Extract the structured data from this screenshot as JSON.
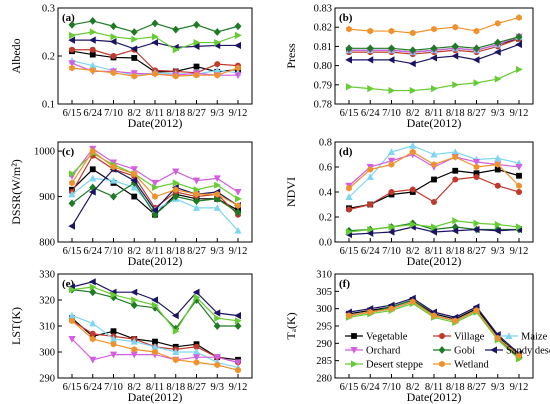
{
  "x_categories": [
    "6/15",
    "6/24",
    "7/10",
    "8/2",
    "8/11",
    "8/18",
    "8/27",
    "9/3",
    "9/12"
  ],
  "x_label": "Date(2012)",
  "colors": {
    "Vegetable": "#000000",
    "Village": "#c0392b",
    "Maize": "#7fd6f0",
    "Orchard": "#d35fe0",
    "Gobi": "#1f7a24",
    "Sandy desert": "#1b1464",
    "Desert steppe": "#66cc33",
    "Wetland": "#f0922c"
  },
  "legend": {
    "entries": [
      {
        "name": "Vegetable",
        "marker": "square"
      },
      {
        "name": "Village",
        "marker": "circle"
      },
      {
        "name": "Maize",
        "marker": "triangle"
      },
      {
        "name": "Orchard",
        "marker": "tri-down"
      },
      {
        "name": "Gobi",
        "marker": "diamond"
      },
      {
        "name": "Sandy desert",
        "marker": "tri-left"
      },
      {
        "name": "Desert steppe",
        "marker": "tri-right"
      },
      {
        "name": "Wetland",
        "marker": "hexagon"
      }
    ]
  },
  "chart_data": [
    {
      "panel": "(a)",
      "type": "line",
      "ylabel": "Albedo",
      "ylim": [
        0.1,
        0.3
      ],
      "yticks": [
        0.1,
        0.2,
        0.3
      ],
      "ytick_labels": [
        "0.1",
        "0.2",
        "0.3"
      ],
      "categories": [
        "6/15",
        "6/24",
        "7/10",
        "8/2",
        "8/11",
        "8/18",
        "8/27",
        "9/3",
        "9/12"
      ],
      "series": [
        {
          "name": "Vegetable",
          "values": [
            0.21,
            0.203,
            0.197,
            0.196,
            0.167,
            0.168,
            0.178,
            0.167,
            0.172
          ]
        },
        {
          "name": "Village",
          "values": [
            0.213,
            0.213,
            0.2,
            0.213,
            0.17,
            0.168,
            0.165,
            0.183,
            0.18
          ]
        },
        {
          "name": "Maize",
          "values": [
            0.19,
            0.18,
            0.17,
            0.16,
            0.165,
            0.163,
            0.162,
            0.17,
            0.165
          ]
        },
        {
          "name": "Orchard",
          "values": [
            0.185,
            0.168,
            0.168,
            0.164,
            0.162,
            0.16,
            0.164,
            0.16,
            0.16
          ]
        },
        {
          "name": "Gobi",
          "values": [
            0.265,
            0.273,
            0.262,
            0.25,
            0.268,
            0.255,
            0.265,
            0.25,
            0.262
          ]
        },
        {
          "name": "Sandy desert",
          "values": [
            0.233,
            0.233,
            0.23,
            0.215,
            0.228,
            0.218,
            0.22,
            0.222,
            0.222
          ]
        },
        {
          "name": "Desert steppe",
          "values": [
            0.243,
            0.25,
            0.24,
            0.235,
            0.24,
            0.213,
            0.228,
            0.228,
            0.243
          ]
        },
        {
          "name": "Wetland",
          "values": [
            0.175,
            0.17,
            0.165,
            0.158,
            0.163,
            0.158,
            0.16,
            0.16,
            0.175
          ]
        }
      ]
    },
    {
      "panel": "(b)",
      "type": "line",
      "ylabel": "Press",
      "ylim": [
        0.78,
        0.83
      ],
      "yticks": [
        0.78,
        0.79,
        0.8,
        0.81,
        0.82,
        0.83
      ],
      "ytick_labels": [
        "0.78",
        "0.79",
        "0.80",
        "0.81",
        "0.82",
        "0.83"
      ],
      "categories": [
        "6/15",
        "6/24",
        "7/10",
        "8/2",
        "8/11",
        "8/18",
        "8/27",
        "9/3",
        "9/12"
      ],
      "series": [
        {
          "name": "Vegetable",
          "values": [
            0.808,
            0.808,
            0.808,
            0.807,
            0.808,
            0.809,
            0.808,
            0.811,
            0.814
          ]
        },
        {
          "name": "Village",
          "values": [
            0.807,
            0.807,
            0.807,
            0.806,
            0.807,
            0.808,
            0.807,
            0.81,
            0.814
          ]
        },
        {
          "name": "Maize",
          "values": [
            0.808,
            0.808,
            0.808,
            0.807,
            0.808,
            0.809,
            0.808,
            0.811,
            0.815
          ]
        },
        {
          "name": "Orchard",
          "values": [
            0.808,
            0.808,
            0.808,
            0.807,
            0.808,
            0.809,
            0.808,
            0.811,
            0.815
          ]
        },
        {
          "name": "Gobi",
          "values": [
            0.809,
            0.809,
            0.809,
            0.808,
            0.809,
            0.81,
            0.809,
            0.812,
            0.815
          ]
        },
        {
          "name": "Sandy desert",
          "values": [
            0.803,
            0.803,
            0.803,
            0.801,
            0.804,
            0.805,
            0.803,
            0.807,
            0.811
          ]
        },
        {
          "name": "Desert steppe",
          "values": [
            0.789,
            0.788,
            0.787,
            0.787,
            0.788,
            0.79,
            0.791,
            0.793,
            0.798
          ]
        },
        {
          "name": "Wetland",
          "values": [
            0.819,
            0.818,
            0.818,
            0.817,
            0.819,
            0.82,
            0.818,
            0.822,
            0.825
          ]
        }
      ]
    },
    {
      "panel": "(c)",
      "type": "line",
      "ylabel": "DSSR(W/m²)",
      "ylim": [
        800,
        1020
      ],
      "yticks": [
        800,
        900,
        1000
      ],
      "ytick_labels": [
        "800",
        "900",
        "1000"
      ],
      "categories": [
        "6/15",
        "6/24",
        "7/10",
        "8/2",
        "8/11",
        "8/18",
        "8/27",
        "9/3",
        "9/12"
      ],
      "series": [
        {
          "name": "Vegetable",
          "values": [
            915,
            960,
            930,
            900,
            860,
            905,
            895,
            895,
            870
          ]
        },
        {
          "name": "Village",
          "values": [
            910,
            990,
            960,
            945,
            875,
            910,
            900,
            905,
            860
          ]
        },
        {
          "name": "Maize",
          "values": [
            905,
            940,
            935,
            920,
            870,
            895,
            875,
            875,
            825
          ]
        },
        {
          "name": "Orchard",
          "values": [
            945,
            1005,
            975,
            960,
            930,
            955,
            935,
            940,
            910
          ]
        },
        {
          "name": "Gobi",
          "values": [
            885,
            920,
            900,
            930,
            860,
            900,
            890,
            895,
            865
          ]
        },
        {
          "name": "Sandy desert",
          "values": [
            835,
            910,
            960,
            935,
            870,
            920,
            905,
            910,
            880
          ]
        },
        {
          "name": "Desert steppe",
          "values": [
            950,
            995,
            970,
            950,
            920,
            930,
            915,
            925,
            895
          ]
        },
        {
          "name": "Wetland",
          "values": [
            930,
            1000,
            965,
            950,
            900,
            915,
            905,
            905,
            880
          ]
        }
      ]
    },
    {
      "panel": "(d)",
      "type": "line",
      "ylabel": "NDVI",
      "ylim": [
        0.0,
        0.8
      ],
      "yticks": [
        0.0,
        0.2,
        0.4,
        0.6,
        0.8
      ],
      "ytick_labels": [
        "0.0",
        "0.2",
        "0.4",
        "0.6",
        "0.8"
      ],
      "categories": [
        "6/15",
        "6/24",
        "7/10",
        "8/2",
        "8/11",
        "8/18",
        "8/27",
        "9/3",
        "9/12"
      ],
      "series": [
        {
          "name": "Vegetable",
          "values": [
            0.27,
            0.3,
            0.38,
            0.4,
            0.5,
            0.57,
            0.55,
            0.58,
            0.53
          ]
        },
        {
          "name": "Village",
          "values": [
            0.26,
            0.3,
            0.4,
            0.42,
            0.32,
            0.5,
            0.52,
            0.45,
            0.4
          ]
        },
        {
          "name": "Maize",
          "values": [
            0.36,
            0.52,
            0.72,
            0.77,
            0.7,
            0.72,
            0.66,
            0.67,
            0.63
          ]
        },
        {
          "name": "Orchard",
          "values": [
            0.45,
            0.6,
            0.65,
            0.7,
            0.6,
            0.68,
            0.64,
            0.62,
            0.6
          ]
        },
        {
          "name": "Gobi",
          "values": [
            0.09,
            0.1,
            0.12,
            0.15,
            0.1,
            0.12,
            0.1,
            0.1,
            0.1
          ]
        },
        {
          "name": "Sandy desert",
          "values": [
            0.06,
            0.07,
            0.08,
            0.12,
            0.08,
            0.09,
            0.1,
            0.09,
            0.1
          ]
        },
        {
          "name": "Desert steppe",
          "values": [
            0.08,
            0.1,
            0.12,
            0.14,
            0.12,
            0.17,
            0.15,
            0.14,
            0.12
          ]
        },
        {
          "name": "Wetland",
          "values": [
            0.43,
            0.58,
            0.62,
            0.72,
            0.62,
            0.68,
            0.6,
            0.62,
            0.45
          ]
        }
      ]
    },
    {
      "panel": "(e)",
      "type": "line",
      "ylabel": "LST(K)",
      "ylim": [
        290,
        330
      ],
      "yticks": [
        290,
        300,
        310,
        320,
        330
      ],
      "ytick_labels": [
        "290",
        "300",
        "310",
        "320",
        "330"
      ],
      "categories": [
        "6/15",
        "6/24",
        "7/10",
        "8/2",
        "8/11",
        "8/18",
        "8/27",
        "9/3",
        "9/12"
      ],
      "series": [
        {
          "name": "Vegetable",
          "values": [
            313,
            306,
            308,
            305,
            304,
            302,
            303,
            298,
            297
          ]
        },
        {
          "name": "Village",
          "values": [
            312,
            307,
            306,
            305,
            302,
            301,
            302,
            298,
            296
          ]
        },
        {
          "name": "Maize",
          "values": [
            314,
            311,
            305,
            304,
            302,
            300,
            300,
            296,
            294
          ]
        },
        {
          "name": "Orchard",
          "values": [
            305,
            297,
            299,
            299,
            299,
            297,
            298,
            298,
            296
          ]
        },
        {
          "name": "Gobi",
          "values": [
            324,
            323,
            321,
            318,
            317,
            309,
            320,
            310,
            310
          ]
        },
        {
          "name": "Sandy desert",
          "values": [
            325,
            327,
            323,
            323,
            320,
            314,
            323,
            315,
            314
          ]
        },
        {
          "name": "Desert steppe",
          "values": [
            324,
            325,
            322,
            320,
            318,
            308,
            321,
            313,
            312
          ]
        },
        {
          "name": "Wetland",
          "values": [
            312,
            305,
            303,
            301,
            300,
            297,
            296,
            295,
            293
          ]
        }
      ]
    },
    {
      "panel": "(f)",
      "type": "line",
      "ylabel": "Tₐ(K)",
      "ylim": [
        280,
        310
      ],
      "yticks": [
        280,
        285,
        290,
        295,
        300,
        305,
        310
      ],
      "ytick_labels": [
        "280",
        "285",
        "290",
        "295",
        "300",
        "305",
        "310"
      ],
      "categories": [
        "6/15",
        "6/24",
        "7/10",
        "8/2",
        "8/11",
        "8/18",
        "8/27",
        "9/3",
        "9/12"
      ],
      "series": [
        {
          "name": "Vegetable",
          "values": [
            298.5,
            299.5,
            300.5,
            302.5,
            298.5,
            297.0,
            300.0,
            292.0,
            286.5
          ]
        },
        {
          "name": "Village",
          "values": [
            298.0,
            299.0,
            300.0,
            302.0,
            298.0,
            296.5,
            299.5,
            291.5,
            286.0
          ]
        },
        {
          "name": "Maize",
          "values": [
            298.0,
            299.0,
            300.0,
            302.0,
            298.0,
            296.5,
            299.5,
            291.5,
            286.5
          ]
        },
        {
          "name": "Orchard",
          "values": [
            298.0,
            299.0,
            300.0,
            302.0,
            298.0,
            296.5,
            299.5,
            291.5,
            286.0
          ]
        },
        {
          "name": "Gobi",
          "values": [
            298.0,
            299.0,
            300.5,
            302.5,
            298.0,
            296.5,
            299.5,
            291.5,
            286.0
          ]
        },
        {
          "name": "Sandy desert",
          "values": [
            299.0,
            300.0,
            301.0,
            303.0,
            299.0,
            297.5,
            300.5,
            292.5,
            287.0
          ]
        },
        {
          "name": "Desert steppe",
          "values": [
            297.5,
            298.5,
            299.5,
            301.5,
            297.5,
            296.0,
            299.0,
            291.0,
            285.5
          ]
        },
        {
          "name": "Wetland",
          "values": [
            298.0,
            299.0,
            300.0,
            302.0,
            298.0,
            296.5,
            299.5,
            291.5,
            286.5
          ]
        }
      ]
    }
  ]
}
